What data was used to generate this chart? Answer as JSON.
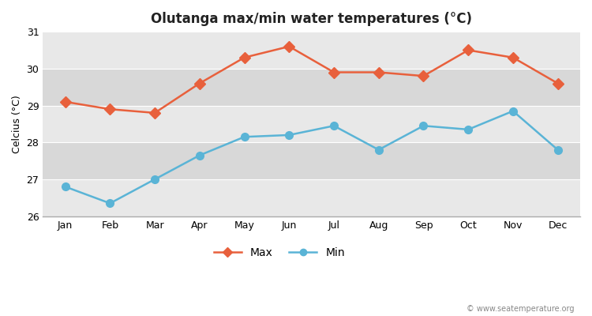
{
  "title": "Olutanga max/min water temperatures (°C)",
  "ylabel": "Celcius (°C)",
  "months": [
    "Jan",
    "Feb",
    "Mar",
    "Apr",
    "May",
    "Jun",
    "Jul",
    "Aug",
    "Sep",
    "Oct",
    "Nov",
    "Dec"
  ],
  "max_values": [
    29.1,
    28.9,
    28.8,
    29.6,
    30.3,
    30.6,
    29.9,
    29.9,
    29.8,
    30.5,
    30.3,
    29.6
  ],
  "min_values": [
    26.8,
    26.35,
    27.0,
    27.65,
    28.15,
    28.2,
    28.45,
    27.8,
    28.45,
    28.35,
    28.85,
    27.8
  ],
  "max_color": "#e8603c",
  "min_color": "#5ab4d6",
  "bg_color": "#ffffff",
  "band_colors": [
    "#e8e8e8",
    "#d8d8d8"
  ],
  "ylim": [
    26,
    31
  ],
  "yticks": [
    26,
    27,
    28,
    29,
    30,
    31
  ],
  "legend_labels": [
    "Max",
    "Min"
  ],
  "watermark": "© www.seatemperature.org",
  "marker_size": 7,
  "line_width": 1.8
}
